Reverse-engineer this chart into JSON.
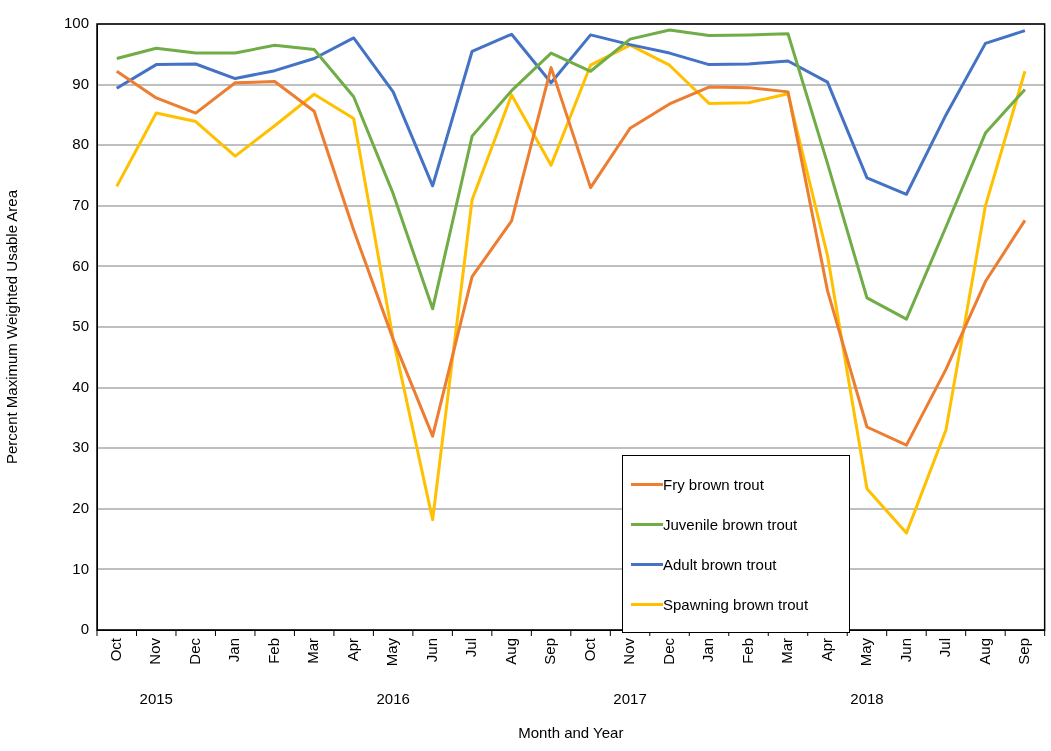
{
  "chart_data": {
    "type": "line",
    "xlabel": "Month and Year",
    "ylabel": "Percent Maximum Weighted Usable Area",
    "categories": [
      "Oct",
      "Nov",
      "Dec",
      "Jan",
      "Feb",
      "Mar",
      "Apr",
      "May",
      "Jun",
      "Jul",
      "Aug",
      "Sep",
      "Oct",
      "Nov",
      "Dec",
      "Jan",
      "Feb",
      "Mar",
      "Apr",
      "May",
      "Jun",
      "Jul",
      "Aug",
      "Sep"
    ],
    "series": [
      {
        "name": "Fry brown trout",
        "color": "#ed7d31",
        "values": [
          92.2,
          87.8,
          85.3,
          90.3,
          90.5,
          85.6,
          66,
          48,
          32,
          58.3,
          67.5,
          92.8,
          73,
          82.8,
          86.8,
          89.6,
          89.5,
          88.8,
          56,
          33.5,
          30.5,
          43,
          57.5,
          67.6
        ]
      },
      {
        "name": "Juvenile brown trout",
        "color": "#70ad47",
        "values": [
          94.3,
          96,
          95.2,
          95.2,
          96.5,
          95.8,
          88,
          72,
          53,
          81.5,
          89,
          95.2,
          92.2,
          97.5,
          99,
          98.1,
          98.2,
          98.4,
          77,
          54.8,
          51.3,
          66.5,
          82,
          89.2
        ]
      },
      {
        "name": "Adult brown trout",
        "color": "#4472c4",
        "values": [
          89.4,
          93.3,
          93.4,
          91,
          92.3,
          94.3,
          97.7,
          88.8,
          73.3,
          95.5,
          98.3,
          90.3,
          98.2,
          96.6,
          95.2,
          93.3,
          93.4,
          93.9,
          90.4,
          74.6,
          71.9,
          85,
          96.8,
          98.9
        ]
      },
      {
        "name": "Spawning brown trout",
        "color": "#ffc000",
        "values": [
          73.2,
          85.3,
          83.9,
          78.2,
          83.2,
          88.4,
          84.4,
          48,
          18.2,
          71,
          88.3,
          76.7,
          93.2,
          96.5,
          93.2,
          86.9,
          87,
          88.5,
          61.8,
          23.3,
          16,
          33,
          70,
          92.2
        ]
      }
    ],
    "ylim": [
      0,
      100
    ],
    "yticks": [
      0,
      10,
      20,
      30,
      40,
      50,
      60,
      70,
      80,
      90,
      100
    ],
    "grid": "y",
    "legend": "bottom",
    "marker": "none",
    "line_style": "solid",
    "annotations": [
      "2015",
      "2016",
      "2017",
      "2018"
    ]
  }
}
